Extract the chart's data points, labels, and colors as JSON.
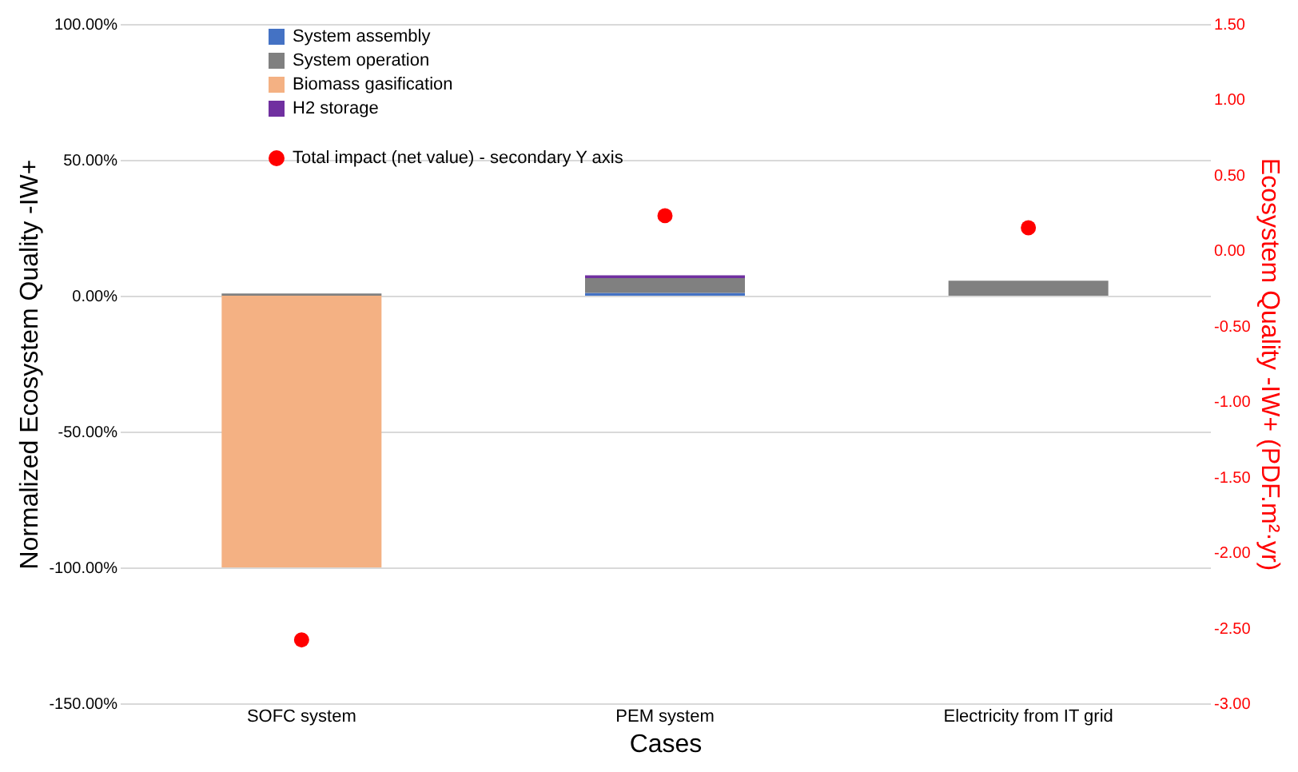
{
  "chart_data": {
    "type": "bar",
    "stacked": true,
    "xlabel": "Cases",
    "ylabel": "Normalized Ecosystem Quality -IW+",
    "y2label": "Ecosystem Quality -IW+ (PDF.m²·yr)",
    "categories": [
      "SOFC system",
      "PEM system",
      "Electricity from IT grid"
    ],
    "series": [
      {
        "name": "System assembly",
        "color": "#4472c4",
        "values": [
          0,
          1,
          0
        ]
      },
      {
        "name": "System operation",
        "color": "#808080",
        "values": [
          0.8,
          5.5,
          5.5
        ]
      },
      {
        "name": "Biomass gasification",
        "color": "#f4b183",
        "values": [
          -100,
          0,
          0
        ]
      },
      {
        "name": "H2 storage",
        "color": "#7030a0",
        "values": [
          0,
          1,
          0
        ]
      },
      {
        "name": "Total impact (net value) - secondary Y axis",
        "type": "scatter",
        "axis": "y2",
        "color": "#ff0000",
        "marker": "circle",
        "values": [
          -2.58,
          0.23,
          0.15
        ]
      }
    ],
    "ylim": [
      -150,
      100
    ],
    "yticks": [
      {
        "value": -150,
        "label": "-150.00%"
      },
      {
        "value": -100,
        "label": "-100.00%"
      },
      {
        "value": -50,
        "label": "-50.00%"
      },
      {
        "value": 0,
        "label": "0.00%"
      },
      {
        "value": 50,
        "label": "50.00%"
      },
      {
        "value": 100,
        "label": "100.00%"
      }
    ],
    "y2lim": [
      -3,
      1.5
    ],
    "y2ticks": [
      {
        "value": -3,
        "label": "-3.00"
      },
      {
        "value": -2.5,
        "label": "-2.50"
      },
      {
        "value": -2,
        "label": "-2.00"
      },
      {
        "value": -1.5,
        "label": "-1.50"
      },
      {
        "value": -1,
        "label": "-1.00"
      },
      {
        "value": -0.5,
        "label": "-0.50"
      },
      {
        "value": 0,
        "label": "0.00"
      },
      {
        "value": 0.5,
        "label": "0.50"
      },
      {
        "value": 1,
        "label": "1.00"
      },
      {
        "value": 1.5,
        "label": "1.50"
      }
    ],
    "grid": "y",
    "legend": "top left"
  }
}
